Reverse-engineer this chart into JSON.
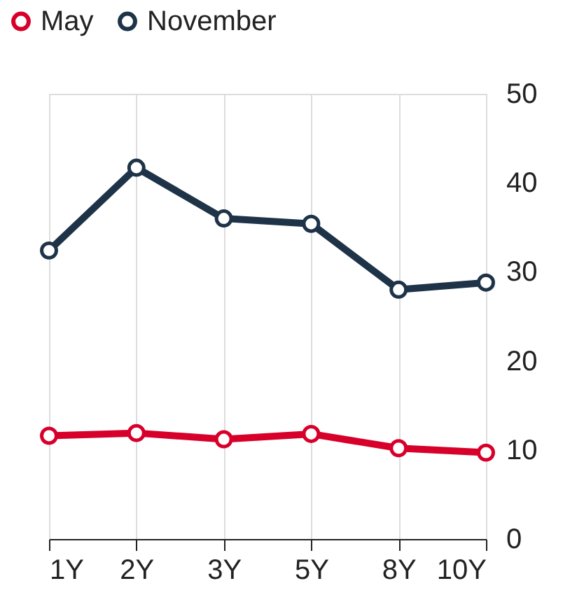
{
  "chart_data": {
    "type": "line",
    "categories": [
      "1Y",
      "2Y",
      "3Y",
      "5Y",
      "8Y",
      "10Y"
    ],
    "series": [
      {
        "name": "May",
        "color": "#d7002b",
        "values": [
          11.6,
          11.9,
          11.2,
          11.8,
          10.2,
          9.7
        ]
      },
      {
        "name": "November",
        "color": "#1f3348",
        "values": [
          32.4,
          41.7,
          36.0,
          35.4,
          28.0,
          28.8
        ]
      }
    ],
    "ylim": [
      0,
      50
    ],
    "yticks": [
      0,
      10,
      20,
      30,
      40,
      50
    ],
    "grid": "x",
    "legend": "top left",
    "marker": "circle",
    "line_style": "solid"
  }
}
